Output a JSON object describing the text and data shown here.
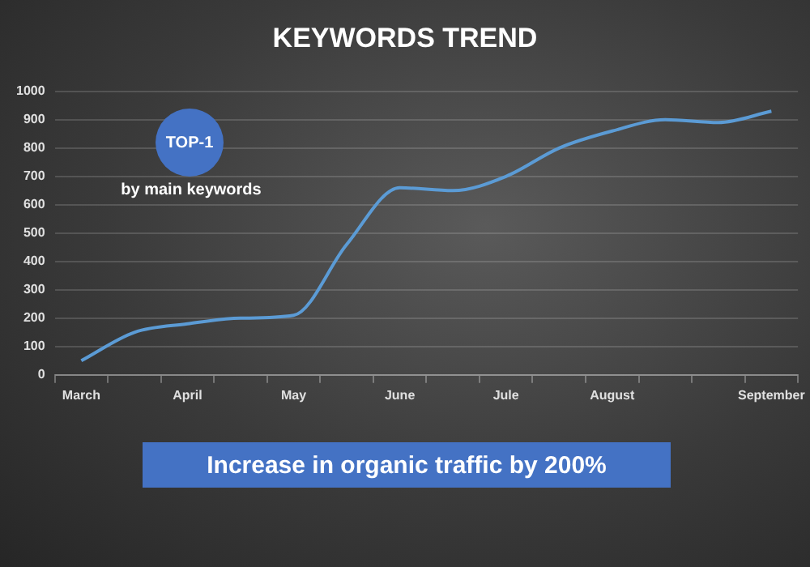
{
  "chart_data": {
    "type": "line",
    "title": "KEYWORDS TREND",
    "categories": [
      "March",
      null,
      "April",
      null,
      "May",
      null,
      "June",
      null,
      "Jule",
      null,
      "August",
      null,
      null,
      "September"
    ],
    "series": [
      {
        "color": "#5b9bd5",
        "values": [
          50,
          150,
          180,
          200,
          210,
          460,
          660,
          650,
          700,
          800,
          860,
          900,
          890,
          930
        ]
      }
    ],
    "ylim": [
      0,
      1000
    ],
    "yticks": [
      0,
      100,
      200,
      300,
      400,
      500,
      600,
      700,
      800,
      900,
      1000
    ],
    "grid": "y",
    "legend": false,
    "marker": "none",
    "line_style": "solid",
    "annotations": [
      "TOP-1",
      "by main keywords",
      "Increase in organic traffic by 200%"
    ]
  }
}
